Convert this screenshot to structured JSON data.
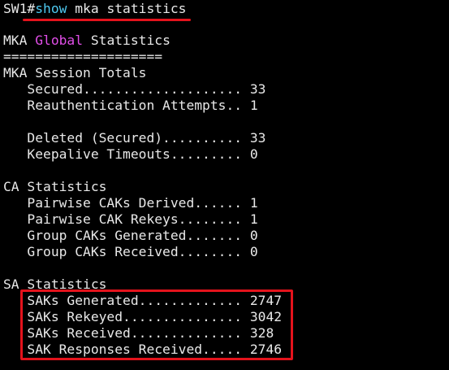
{
  "prompt": {
    "hostname": "SW1#",
    "command_verb": "show",
    "command_args": " mka statistics"
  },
  "heading": {
    "prefix": "MKA ",
    "accent_word": "Global",
    "suffix": " Statistics",
    "rule": "===================="
  },
  "sections": {
    "session": {
      "title": "MKA Session Totals",
      "rows": [
        "   Secured.................... 33",
        "   Reauthentication Attempts.. 1",
        "",
        "   Deleted (Secured).......... 33",
        "   Keepalive Timeouts......... 0"
      ]
    },
    "ca": {
      "title": "CA Statistics",
      "rows": [
        "   Pairwise CAKs Derived...... 1",
        "   Pairwise CAK Rekeys........ 1",
        "   Group CAKs Generated....... 0",
        "   Group CAKs Received........ 0"
      ]
    },
    "sa": {
      "title": "SA Statistics",
      "rows": [
        "   SAKs Generated............. 2747",
        "   SAKs Rekeyed............... 3042",
        "   SAKs Received.............. 328",
        "   SAK Responses Received..... 2746"
      ]
    }
  },
  "colors": {
    "background": "#000000",
    "text": "#e8e8e8",
    "command": "#4ec9f0",
    "accent": "#e14ee8",
    "annotation": "#e4131c"
  }
}
